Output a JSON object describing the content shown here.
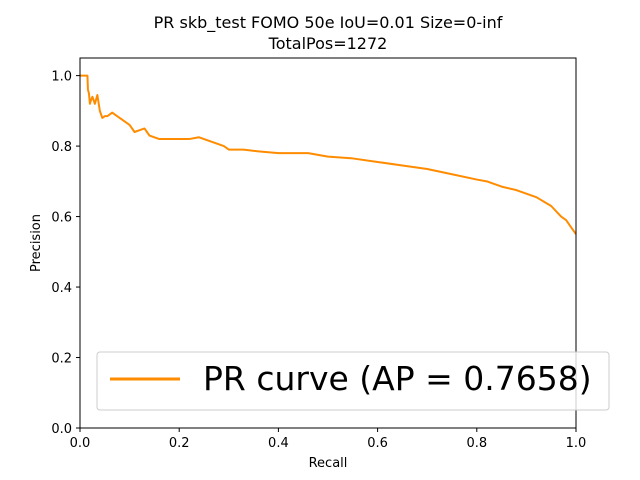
{
  "chart_data": {
    "type": "line",
    "title": "PR skb_test FOMO 50e IoU=0.01 Size=0-inf",
    "subtitle": "TotalPos=1272",
    "xlabel": "Recall",
    "ylabel": "Precision",
    "xlim": [
      0,
      1
    ],
    "ylim": [
      0,
      1.05
    ],
    "xticks": [
      "0.0",
      "0.2",
      "0.4",
      "0.6",
      "0.8",
      "1.0"
    ],
    "yticks": [
      "0.0",
      "0.2",
      "0.4",
      "0.6",
      "0.8",
      "1.0"
    ],
    "grid": false,
    "legend_position": "lower-right",
    "series": [
      {
        "name": "PR curve (AP = 0.7658)",
        "color": "#ff8c00",
        "x": [
          0.0,
          0.015,
          0.016,
          0.018,
          0.02,
          0.022,
          0.025,
          0.03,
          0.035,
          0.04,
          0.045,
          0.05,
          0.055,
          0.06,
          0.065,
          0.07,
          0.075,
          0.08,
          0.09,
          0.1,
          0.11,
          0.12,
          0.13,
          0.135,
          0.14,
          0.15,
          0.16,
          0.18,
          0.2,
          0.22,
          0.24,
          0.25,
          0.27,
          0.29,
          0.3,
          0.33,
          0.36,
          0.4,
          0.44,
          0.46,
          0.5,
          0.55,
          0.6,
          0.65,
          0.7,
          0.75,
          0.8,
          0.82,
          0.85,
          0.88,
          0.9,
          0.92,
          0.95,
          0.97,
          0.98,
          0.99,
          1.0
        ],
        "y": [
          1.0,
          1.0,
          0.96,
          0.95,
          0.92,
          0.93,
          0.94,
          0.92,
          0.945,
          0.9,
          0.88,
          0.885,
          0.885,
          0.89,
          0.895,
          0.89,
          0.885,
          0.88,
          0.87,
          0.86,
          0.84,
          0.845,
          0.85,
          0.84,
          0.83,
          0.825,
          0.82,
          0.82,
          0.82,
          0.82,
          0.825,
          0.82,
          0.81,
          0.8,
          0.79,
          0.79,
          0.785,
          0.78,
          0.78,
          0.78,
          0.77,
          0.765,
          0.755,
          0.745,
          0.735,
          0.72,
          0.705,
          0.7,
          0.685,
          0.675,
          0.665,
          0.655,
          0.63,
          0.6,
          0.59,
          0.57,
          0.55
        ]
      }
    ]
  }
}
